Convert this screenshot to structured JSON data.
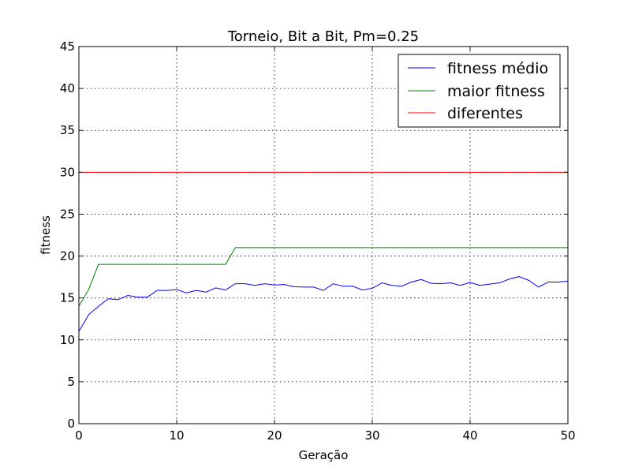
{
  "chart_data": {
    "type": "line",
    "title": "Torneio, Bit a Bit, Pm=0.25",
    "xlabel": "Geração",
    "ylabel": "fitness",
    "xlim": [
      0,
      50
    ],
    "ylim": [
      0,
      45
    ],
    "xticks": [
      0,
      10,
      20,
      30,
      40,
      50
    ],
    "yticks": [
      0,
      5,
      10,
      15,
      20,
      25,
      30,
      35,
      40,
      45
    ],
    "grid": true,
    "legend_position": "top-right",
    "x": [
      0,
      1,
      2,
      3,
      4,
      5,
      6,
      7,
      8,
      9,
      10,
      11,
      12,
      13,
      14,
      15,
      16,
      17,
      18,
      19,
      20,
      21,
      22,
      23,
      24,
      25,
      26,
      27,
      28,
      29,
      30,
      31,
      32,
      33,
      34,
      35,
      36,
      37,
      38,
      39,
      40,
      41,
      42,
      43,
      44,
      45,
      46,
      47,
      48,
      49,
      50
    ],
    "series": [
      {
        "name": "fitness médio",
        "color": "#0000ff",
        "values": [
          11.0,
          13.0,
          14.0,
          14.9,
          14.8,
          15.3,
          15.1,
          15.1,
          15.9,
          15.9,
          16.0,
          15.6,
          15.9,
          15.7,
          16.2,
          15.95,
          16.7,
          16.7,
          16.5,
          16.7,
          16.55,
          16.6,
          16.35,
          16.3,
          16.3,
          15.9,
          16.7,
          16.4,
          16.4,
          15.95,
          16.15,
          16.8,
          16.5,
          16.4,
          16.9,
          17.2,
          16.75,
          16.7,
          16.8,
          16.5,
          16.85,
          16.5,
          16.65,
          16.8,
          17.25,
          17.55,
          17.1,
          16.3,
          16.9,
          16.9,
          17.0
        ]
      },
      {
        "name": "maior fitness",
        "color": "#008000",
        "values": [
          14,
          16,
          19,
          19,
          19,
          19,
          19,
          19,
          19,
          19,
          19,
          19,
          19,
          19,
          19,
          19,
          21,
          21,
          21,
          21,
          21,
          21,
          21,
          21,
          21,
          21,
          21,
          21,
          21,
          21,
          21,
          21,
          21,
          21,
          21,
          21,
          21,
          21,
          21,
          21,
          21,
          21,
          21,
          21,
          21,
          21,
          21,
          21,
          21,
          21,
          21
        ]
      },
      {
        "name": "diferentes",
        "color": "#ff0000",
        "values": [
          30,
          30,
          30,
          30,
          30,
          30,
          30,
          30,
          30,
          30,
          30,
          30,
          30,
          30,
          30,
          30,
          30,
          30,
          30,
          30,
          30,
          30,
          30,
          30,
          30,
          30,
          30,
          30,
          30,
          30,
          30,
          30,
          30,
          30,
          30,
          30,
          30,
          30,
          30,
          30,
          30,
          30,
          30,
          30,
          30,
          30,
          30,
          30,
          30,
          30,
          30
        ]
      }
    ]
  }
}
